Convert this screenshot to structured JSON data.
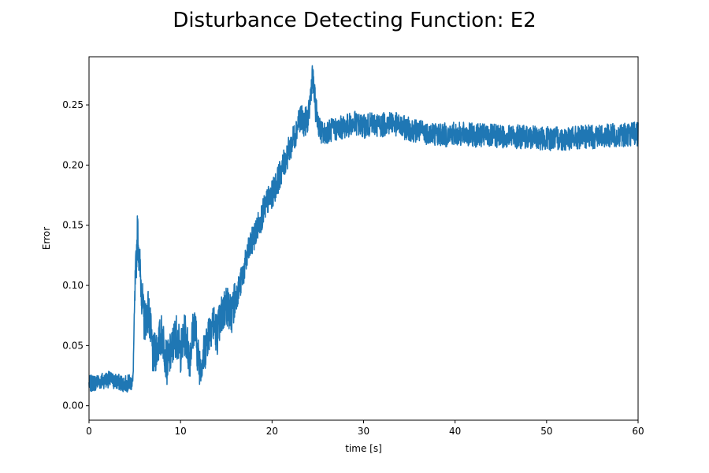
{
  "chart_data": {
    "type": "line",
    "title": "Disturbance Detecting Function: E2",
    "xlabel": "time [s]",
    "ylabel": "Error",
    "xlim": [
      0,
      60
    ],
    "ylim": [
      -0.012,
      0.29
    ],
    "xticks": [
      0,
      10,
      20,
      30,
      40,
      50,
      60
    ],
    "yticks": [
      0.0,
      0.05,
      0.1,
      0.15,
      0.2,
      0.25
    ],
    "xtick_labels": [
      "0",
      "10",
      "20",
      "30",
      "40",
      "50",
      "60"
    ],
    "ytick_labels": [
      "0.00",
      "0.05",
      "0.10",
      "0.15",
      "0.20",
      "0.25"
    ],
    "grid": false,
    "legend": false,
    "series": [
      {
        "color": "#1f77b4",
        "x": [
          0,
          1,
          2,
          3,
          4,
          4.8,
          5.0,
          5.3,
          5.6,
          6.0,
          6.5,
          7.0,
          7.5,
          8.0,
          8.5,
          9.0,
          9.5,
          10.0,
          10.5,
          11.0,
          11.5,
          12.0,
          12.5,
          13.0,
          13.5,
          14.0,
          14.5,
          15.0,
          15.5,
          16.0,
          16.5,
          17.0,
          17.5,
          18.0,
          18.5,
          19.0,
          19.5,
          20.0,
          20.5,
          21.0,
          21.5,
          22.0,
          22.5,
          23.0,
          23.5,
          24.0,
          24.4,
          24.8,
          25.2,
          25.6,
          26.0,
          27,
          28,
          29,
          30,
          31,
          32,
          33,
          34,
          35,
          36,
          37,
          38,
          39,
          40,
          42,
          44,
          46,
          48,
          50,
          52,
          54,
          56,
          58,
          60
        ],
        "y": [
          0.018,
          0.02,
          0.022,
          0.02,
          0.018,
          0.02,
          0.09,
          0.145,
          0.11,
          0.07,
          0.08,
          0.04,
          0.05,
          0.06,
          0.035,
          0.045,
          0.06,
          0.045,
          0.06,
          0.04,
          0.07,
          0.035,
          0.04,
          0.06,
          0.07,
          0.06,
          0.075,
          0.085,
          0.075,
          0.09,
          0.1,
          0.115,
          0.13,
          0.14,
          0.15,
          0.16,
          0.17,
          0.175,
          0.185,
          0.195,
          0.205,
          0.215,
          0.225,
          0.24,
          0.235,
          0.24,
          0.275,
          0.245,
          0.23,
          0.225,
          0.228,
          0.23,
          0.232,
          0.235,
          0.232,
          0.234,
          0.233,
          0.236,
          0.232,
          0.23,
          0.228,
          0.227,
          0.226,
          0.225,
          0.226,
          0.225,
          0.224,
          0.224,
          0.223,
          0.222,
          0.222,
          0.223,
          0.224,
          0.225,
          0.226
        ]
      }
    ]
  }
}
